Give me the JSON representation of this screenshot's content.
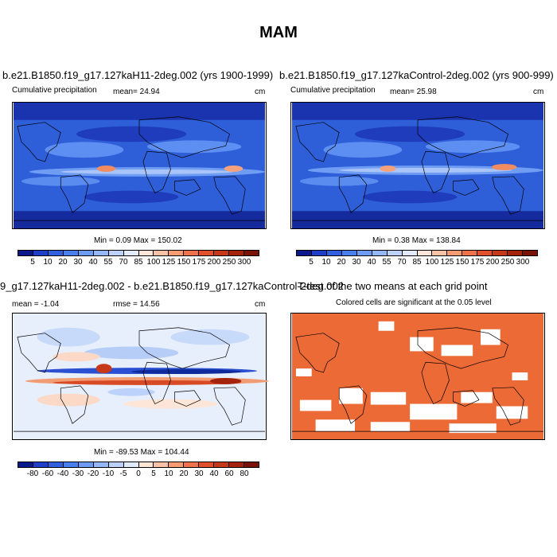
{
  "main_title": "MAM",
  "panels": {
    "top_left": {
      "title": "b.e21.B1850.f19_g17.127kaH11-2deg.002 (yrs 1900-1999)",
      "left_label": "Cumulative precipitation",
      "center_label": "mean=  24.94",
      "right_label": "cm",
      "minmax": "Min =   0.09 Max = 150.02"
    },
    "top_right": {
      "title": "b.e21.B1850.f19_g17.127kaControl-2deg.002 (yrs 900-999)",
      "left_label": "Cumulative precipitation",
      "center_label": "mean=  25.98",
      "right_label": "cm",
      "minmax": "Min =   0.38 Max = 138.84"
    },
    "bottom_left": {
      "title": "9_g17.127kaH11-2deg.002 - b.e21.B1850.f19_g17.127kaControl-2deg.002",
      "left_label": "mean =  -1.04",
      "center_label": "rmse =  14.56",
      "right_label": "cm",
      "minmax": "Min = -89.53 Max = 104.44"
    },
    "bottom_right": {
      "title": "T-test of the two means at each grid point",
      "subtitle": "Colored cells are significant at the 0.05 level"
    }
  },
  "precip_colorbar": {
    "colors": [
      "#0a1a8c",
      "#1f3fc8",
      "#3060e0",
      "#4a7ff0",
      "#6e9cf5",
      "#95b8f8",
      "#bcd2fa",
      "#e2ebfc",
      "#fde5d8",
      "#fbc2a6",
      "#f79b72",
      "#f0724a",
      "#e0502a",
      "#c63818",
      "#a3230c",
      "#7a1205"
    ],
    "ticks": [
      "5",
      "10",
      "20",
      "30",
      "40",
      "55",
      "70",
      "85",
      "100",
      "125",
      "150",
      "175",
      "200",
      "250",
      "300"
    ]
  },
  "diff_colorbar": {
    "colors": [
      "#0a1a8c",
      "#1f3fc8",
      "#3060e0",
      "#4a7ff0",
      "#6e9cf5",
      "#95b8f8",
      "#bcd2fa",
      "#e2ebfc",
      "#fde5d8",
      "#fbc2a6",
      "#f79b72",
      "#f0724a",
      "#e0502a",
      "#c63818",
      "#a3230c",
      "#7a1205"
    ],
    "ticks": [
      "-80",
      "-60",
      "-40",
      "-30",
      "-20",
      "-10",
      "-5",
      "0",
      "5",
      "10",
      "20",
      "30",
      "40",
      "60",
      "80"
    ]
  },
  "ttest_color": "#ec6a35"
}
